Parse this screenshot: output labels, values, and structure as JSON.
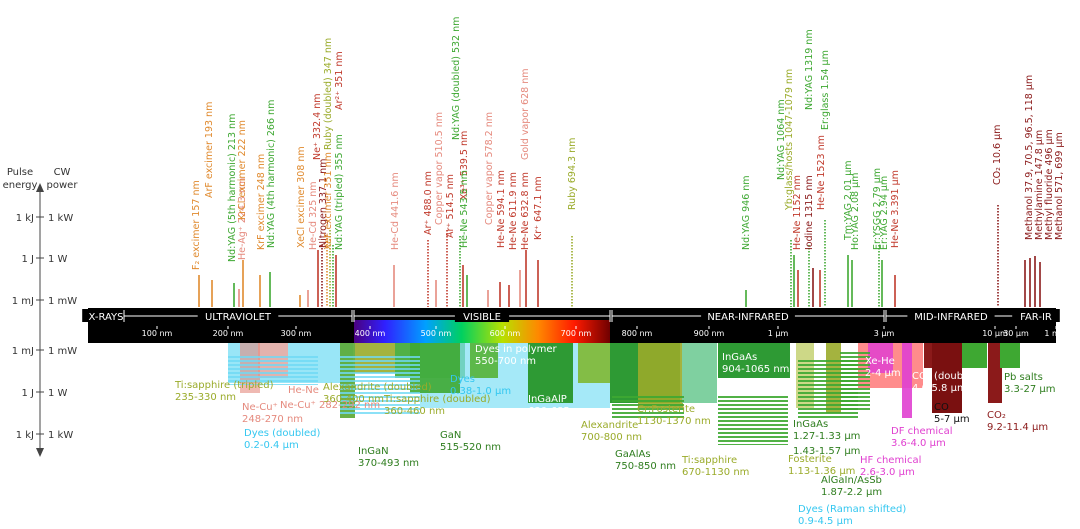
{
  "axis": {
    "pulse_title": [
      "Pulse",
      "energy"
    ],
    "cw_title": [
      "CW",
      "power"
    ],
    "upper_ticks": [
      {
        "pulse": "1 kJ",
        "cw": "1 kW"
      },
      {
        "pulse": "1 J",
        "cw": "1 W"
      },
      {
        "pulse": "1 mJ",
        "cw": "1 mW"
      }
    ],
    "lower_ticks": [
      {
        "pulse": "1 mJ",
        "cw": "1 mW"
      },
      {
        "pulse": "1 J",
        "cw": "1 W"
      },
      {
        "pulse": "1 kJ",
        "cw": "1 kW"
      }
    ]
  },
  "bands": [
    {
      "label": "X-RAYS"
    },
    {
      "label": "ULTRAVIOLET"
    },
    {
      "label": "VISIBLE"
    },
    {
      "label": "NEAR-INFRARED"
    },
    {
      "label": "MID-INFRARED"
    },
    {
      "label": "FAR-IR"
    }
  ],
  "wavelength_ticks": [
    "100 nm",
    "200 nm",
    "300 nm",
    "400 nm",
    "500 nm",
    "600 nm",
    "700 nm",
    "800 nm",
    "900 nm",
    "1 μm",
    "3 μm",
    "10 μm",
    "30 μm",
    "1 mm"
  ],
  "colors": {
    "green": "#3ea832",
    "red": "#c0392b",
    "orange": "#e08a2e",
    "salmon": "#e58a7e",
    "olive": "#9aab2a",
    "darkred": "#8b1a1a",
    "cyan": "#34c7f0",
    "magenta": "#e040d0",
    "darkgreen": "#2e7d1e"
  },
  "gas_lasers": [
    {
      "label": "F₂ excimer  157 nm"
    },
    {
      "label": "ArF excimer  193 nm"
    },
    {
      "label": "Nd:YAG (5th harmonic)  213 nm"
    },
    {
      "label": "He-Ag⁺  224.3 nm"
    },
    {
      "label": "KrCl excimer  222 nm"
    },
    {
      "label": "KrF excimer  248 nm"
    },
    {
      "label": "Nd:YAG (4th harmonic)  266 nm"
    },
    {
      "label": "XeCl excimer  308 nm"
    },
    {
      "label": "He-Cd  325 nm"
    },
    {
      "label": "Ne⁺  332.4 nm"
    },
    {
      "label": "Nitrogen  337.1 nm"
    },
    {
      "label": "XeF excimer  351 nm"
    },
    {
      "label": "Ruby (doubled)  347 nm"
    },
    {
      "label": "Nd:YAG (tripled)  355 nm"
    },
    {
      "label": "Ar²⁺  351 nm"
    },
    {
      "label": "He-Cd  441.6 nm"
    },
    {
      "label": "Ar⁺  488.0 nm"
    },
    {
      "label": "Copper vapor  510.5 nm"
    },
    {
      "label": "Ar⁺  514.5 nm"
    },
    {
      "label": "Nd:YAG (doubled)  532 nm"
    },
    {
      "label": "Xe³⁺  539.5 nm"
    },
    {
      "label": "He-Ne  543.5 nm"
    },
    {
      "label": "Copper vapor  578.2 nm"
    },
    {
      "label": "He-Ne  594.1 nm"
    },
    {
      "label": "He-Ne  611.9 nm"
    },
    {
      "label": "Gold vapor  628 nm"
    },
    {
      "label": "He-Ne  632.8 nm"
    },
    {
      "label": "Kr⁺  647.1 nm"
    },
    {
      "label": "Ruby  694.3 nm"
    },
    {
      "label": "Nd:YAG  946 nm"
    },
    {
      "label": "Nd:YAG  1064 nm"
    },
    {
      "label": "Yb:glass/hosts  1047-1079 nm"
    },
    {
      "label": "He-Ne  1152 nm"
    },
    {
      "label": "Nd:YAG  1319 nm"
    },
    {
      "label": "Iodine  1315 nm"
    },
    {
      "label": "He-Ne  1523 nm"
    },
    {
      "label": "Er:glass  1.54 μm"
    },
    {
      "label": "Tm:YAG  2.01 μm"
    },
    {
      "label": "Ho:YAG  2.08 μm"
    },
    {
      "label": "Er:YSGG  2.79 μm"
    },
    {
      "label": "Er:YAG  2.94 μm"
    },
    {
      "label": "He-Ne  3.391 μm"
    },
    {
      "label": "CO₂  10.6 μm"
    },
    {
      "label": "Methanol  37.9, 70.5, 96.5, 118 μm"
    },
    {
      "label": "Methylamine  147.8 μm"
    },
    {
      "label": "Methyl fluoride  496 μm"
    },
    {
      "label": "Methanol  571, 699 μm"
    }
  ],
  "tunable_lasers": [
    {
      "name": "Ti:sapphire (tripled)",
      "range": "235-330 nm"
    },
    {
      "name": "He-Ne",
      "range": ""
    },
    {
      "name": "Ne-Cu⁺  282-292 nm",
      "range": ""
    },
    {
      "name": "Ne-Cu⁺",
      "range": "248-270 nm"
    },
    {
      "name": "Dyes (doubled)",
      "range": "0.2-0.4 μm"
    },
    {
      "name": "Alexandrite (doubled)",
      "range": "360-400 nm"
    },
    {
      "name": "Ti:sapphire (doubled)",
      "range": "360-460 nm"
    },
    {
      "name": "InGaN",
      "range": "370-493 nm"
    },
    {
      "name": "Dyes",
      "range": "0.38-1.0 μm"
    },
    {
      "name": "GaN",
      "range": "515-520 nm"
    },
    {
      "name": "Dyes in polymer",
      "range": "550-700 nm"
    },
    {
      "name": "InGaAlP",
      "range": "630-685 nm"
    },
    {
      "name": "Alexandrite",
      "range": "700-800 nm"
    },
    {
      "name": "GaAlAs",
      "range": "750-850 nm"
    },
    {
      "name": "Cr:Fosterite",
      "range": "1130-1370 nm"
    },
    {
      "name": "Ti:sapphire",
      "range": "670-1130 nm"
    },
    {
      "name": "InGaAs",
      "range": "904-1065 nm"
    },
    {
      "name": "InGaAs",
      "range": "1.27-1.33 μm"
    },
    {
      "name": "",
      "range": "1.43-1.57 μm"
    },
    {
      "name": "Fosterite",
      "range": "1.13-1.36 μm"
    },
    {
      "name": "AlGaIn/AsSb",
      "range": "1.87-2.2 μm"
    },
    {
      "name": "Dyes (Raman shifted)",
      "range": "0.9-4.5 μm"
    },
    {
      "name": "Xe-He",
      "range": "2-4 μm"
    },
    {
      "name": "HF chemical",
      "range": "2.6-3.0 μm"
    },
    {
      "name": "DF chemical",
      "range": "3.6-4.0 μm"
    },
    {
      "name": "CO₂ (doubled)",
      "range": "4.6-5.8 μm"
    },
    {
      "name": "CO",
      "range": "5-7 μm"
    },
    {
      "name": "CO₂",
      "range": "9.2-11.4 μm"
    },
    {
      "name": "Pb salts",
      "range": "3.3-27 μm"
    }
  ]
}
